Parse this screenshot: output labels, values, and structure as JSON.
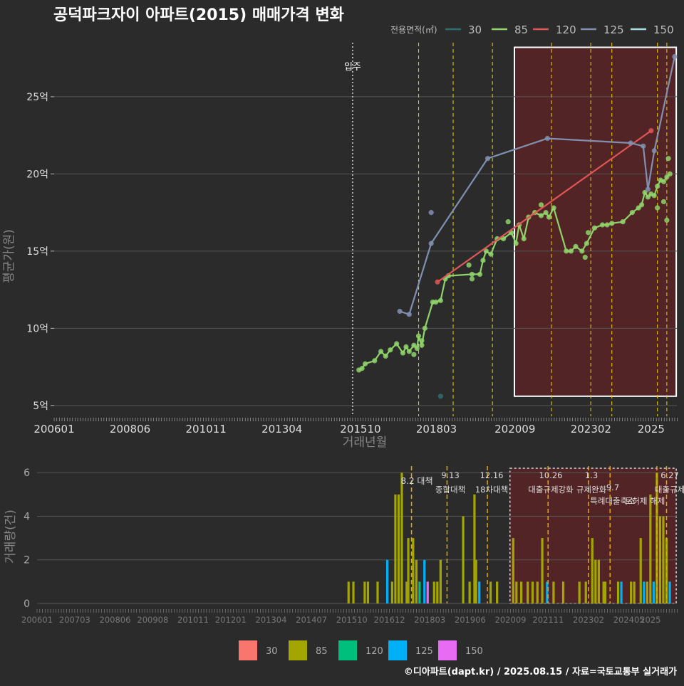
{
  "title": "공덕파크자이 아파트(2015) 매매가격 변화",
  "credit": "©디아파트(dapt.kr) / 2025.08.15 / 자료=국토교통부 실거래가",
  "colors": {
    "bg": "#2b2b2b",
    "grid": "#555555",
    "s30": "#2f6f73",
    "s85": "#8fd36a",
    "s120": "#e05555",
    "s125": "#8090b0",
    "s150": "#a8e0e8",
    "b30": "#f8766d",
    "b85": "#a3a500",
    "b120": "#00bf7d",
    "b125": "#00b0f6",
    "b150": "#e76bf3",
    "policy_dashed": "#e6c200",
    "highlight_fill": "#5a2326"
  },
  "chart_data": [
    {
      "type": "line",
      "name": "price",
      "xlabel": "거래년월",
      "ylabel": "평균가(원)",
      "xticks": [
        "200601",
        "200806",
        "201011",
        "201304",
        "201510",
        "201803",
        "202009",
        "202302",
        "2025"
      ],
      "yticks": [
        "5억",
        "10억",
        "15억",
        "20억",
        "25억"
      ],
      "ylim": [
        4.3,
        28.5
      ],
      "legend_title": "전용면적(㎡)",
      "legend_position": "top-right",
      "legend": [
        "30",
        "85",
        "120",
        "125",
        "150"
      ],
      "marker_label": "입주",
      "marker_x": 2015.5,
      "policy_lines": [
        2017.6,
        2018.7,
        2019.95,
        2021.83,
        2023.08,
        2023.75,
        2025.2,
        2025.5
      ],
      "highlight": {
        "x0": 2020.65,
        "x1": 2025.8,
        "y0": 5.6,
        "y1": 28.2
      },
      "series": [
        {
          "name": "85",
          "color_key": "s85",
          "x": [
            2015.7,
            2015.8,
            2015.9,
            2016.2,
            2016.4,
            2016.55,
            2016.7,
            2016.9,
            2017.1,
            2017.2,
            2017.3,
            2017.45,
            2017.55,
            2017.6,
            2017.7,
            2017.8,
            2018.05,
            2018.15,
            2018.3,
            2018.45,
            2018.55,
            2019.3,
            2019.55,
            2019.65,
            2019.75,
            2019.9,
            2020.1,
            2020.3,
            2020.55,
            2020.7,
            2020.8,
            2020.95,
            2021.1,
            2021.3,
            2021.5,
            2021.65,
            2021.75,
            2021.9,
            2022.3,
            2022.45,
            2022.6,
            2022.8,
            2022.95,
            2023.2,
            2023.45,
            2023.6,
            2023.75,
            2024.1,
            2024.4,
            2024.6,
            2024.7,
            2024.8,
            2024.9,
            2025.0,
            2025.1,
            2025.2,
            2025.3,
            2025.4,
            2025.5,
            2025.6
          ],
          "values": [
            7.3,
            7.4,
            7.7,
            7.9,
            8.5,
            8.2,
            8.6,
            9.0,
            8.4,
            8.8,
            8.5,
            8.9,
            8.7,
            9.5,
            8.9,
            10.0,
            11.7,
            11.7,
            11.8,
            13.2,
            13.4,
            13.5,
            13.5,
            14.4,
            15.0,
            14.8,
            15.8,
            15.8,
            16.2,
            15.5,
            16.7,
            15.8,
            17.2,
            17.5,
            17.3,
            17.5,
            17.2,
            17.8,
            15.0,
            15.0,
            15.3,
            15.0,
            15.5,
            16.5,
            16.7,
            16.7,
            16.8,
            16.9,
            17.5,
            17.8,
            18.0,
            18.8,
            18.5,
            18.7,
            18.6,
            19.2,
            19.6,
            19.5,
            19.8,
            20.0
          ]
        },
        {
          "name": "120",
          "color_key": "s120",
          "x": [
            2018.2,
            2025.0
          ],
          "values": [
            13.0,
            22.8
          ]
        },
        {
          "name": "125",
          "color_key": "s125",
          "x": [
            2017.0,
            2017.3,
            2018.0,
            2019.8,
            2021.7,
            2024.35,
            2024.75,
            2024.9,
            2025.1,
            2025.75
          ],
          "values": [
            11.1,
            10.9,
            15.5,
            21.0,
            22.3,
            22.0,
            21.8,
            19.0,
            21.5,
            27.6
          ]
        },
        {
          "name": "30",
          "color_key": "s30",
          "x": [
            2018.3
          ],
          "values": [
            5.6
          ]
        }
      ],
      "extra_points_85": [
        [
          2018.0,
          17.5
        ],
        [
          2017.45,
          8.3
        ],
        [
          2017.7,
          9.2
        ],
        [
          2019.2,
          14.1
        ],
        [
          2019.3,
          13.2
        ],
        [
          2020.45,
          16.9
        ],
        [
          2021.5,
          18.0
        ],
        [
          2023.0,
          16.2
        ],
        [
          2022.9,
          14.6
        ],
        [
          2025.2,
          17.8
        ],
        [
          2025.4,
          18.2
        ],
        [
          2025.5,
          17.0
        ],
        [
          2025.55,
          21.0
        ]
      ]
    },
    {
      "type": "bar",
      "name": "volume",
      "ylabel": "거래량(건)",
      "xticks": [
        "200601",
        "200703",
        "200806",
        "200908",
        "201011",
        "201201",
        "201304",
        "201407",
        "201510",
        "201612",
        "201803",
        "201906",
        "202009",
        "202111",
        "202302",
        "202405",
        "2025"
      ],
      "yticks": [
        "0",
        "2",
        "4",
        "6"
      ],
      "ylim": [
        0,
        6.3
      ],
      "legend": [
        "30",
        "85",
        "120",
        "125",
        "150"
      ],
      "policy_lines": [
        2017.6,
        2018.7,
        2019.95,
        2021.83,
        2023.08,
        2023.75,
        2025.2,
        2025.5
      ],
      "policy_labels": [
        {
          "date": "8.2",
          "text": "대책",
          "row": 0
        },
        {
          "date": "9.13",
          "text": "종합대책",
          "row": 0
        },
        {
          "date": "12.16",
          "text": "18차대책",
          "row": 0
        },
        {
          "date": "10.26",
          "text": "대출규제강화",
          "row": 1
        },
        {
          "date": "1.3",
          "text": "규제완화",
          "row": 1
        },
        {
          "date": "9.7",
          "text": "특례대출축소",
          "row": 2
        },
        {
          "date": "",
          "text": "토허제 해제",
          "row": 2
        },
        {
          "date": "6.27",
          "text": "대출규제",
          "row": 1
        }
      ],
      "highlight": {
        "x0": 2020.65,
        "x1": 2025.8
      },
      "bars": [
        {
          "x": 2015.65,
          "v": 1,
          "k": "b85"
        },
        {
          "x": 2015.8,
          "v": 1,
          "k": "b85"
        },
        {
          "x": 2016.15,
          "v": 1,
          "k": "b85"
        },
        {
          "x": 2016.25,
          "v": 1,
          "k": "b85"
        },
        {
          "x": 2016.55,
          "v": 1,
          "k": "b85"
        },
        {
          "x": 2016.85,
          "v": 2,
          "k": "b125"
        },
        {
          "x": 2017.0,
          "v": 1,
          "k": "b85"
        },
        {
          "x": 2017.1,
          "v": 5,
          "k": "b85"
        },
        {
          "x": 2017.2,
          "v": 5,
          "k": "b85"
        },
        {
          "x": 2017.3,
          "v": 6,
          "k": "b85"
        },
        {
          "x": 2017.45,
          "v": 1,
          "k": "b85"
        },
        {
          "x": 2017.5,
          "v": 3,
          "k": "b85"
        },
        {
          "x": 2017.65,
          "v": 3,
          "k": "b85"
        },
        {
          "x": 2017.75,
          "v": 2,
          "k": "b85"
        },
        {
          "x": 2017.85,
          "v": 1,
          "k": "b120"
        },
        {
          "x": 2018.0,
          "v": 2,
          "k": "b125"
        },
        {
          "x": 2018.1,
          "v": 1,
          "k": "b150"
        },
        {
          "x": 2018.3,
          "v": 1,
          "k": "b85"
        },
        {
          "x": 2018.4,
          "v": 1,
          "k": "b85"
        },
        {
          "x": 2018.5,
          "v": 2,
          "k": "b85"
        },
        {
          "x": 2019.2,
          "v": 4,
          "k": "b85"
        },
        {
          "x": 2019.4,
          "v": 1,
          "k": "b85"
        },
        {
          "x": 2019.55,
          "v": 5,
          "k": "b85"
        },
        {
          "x": 2019.6,
          "v": 2,
          "k": "b85"
        },
        {
          "x": 2019.7,
          "v": 1,
          "k": "b125"
        },
        {
          "x": 2020.05,
          "v": 1,
          "k": "b85"
        },
        {
          "x": 2020.25,
          "v": 1,
          "k": "b85"
        },
        {
          "x": 2020.75,
          "v": 3,
          "k": "b85"
        },
        {
          "x": 2020.85,
          "v": 1,
          "k": "b85"
        },
        {
          "x": 2021.0,
          "v": 1,
          "k": "b85"
        },
        {
          "x": 2021.2,
          "v": 1,
          "k": "b85"
        },
        {
          "x": 2021.35,
          "v": 1,
          "k": "b85"
        },
        {
          "x": 2021.5,
          "v": 1,
          "k": "b85"
        },
        {
          "x": 2021.65,
          "v": 3,
          "k": "b85"
        },
        {
          "x": 2021.8,
          "v": 1,
          "k": "b125"
        },
        {
          "x": 2022.0,
          "v": 1,
          "k": "b85"
        },
        {
          "x": 2022.3,
          "v": 1,
          "k": "b85"
        },
        {
          "x": 2022.8,
          "v": 1,
          "k": "b85"
        },
        {
          "x": 2023.0,
          "v": 1,
          "k": "b85"
        },
        {
          "x": 2023.2,
          "v": 3,
          "k": "b85"
        },
        {
          "x": 2023.3,
          "v": 2,
          "k": "b85"
        },
        {
          "x": 2023.4,
          "v": 2,
          "k": "b85"
        },
        {
          "x": 2023.55,
          "v": 1,
          "k": "b85"
        },
        {
          "x": 2023.6,
          "v": 1,
          "k": "b85"
        },
        {
          "x": 2024.0,
          "v": 1,
          "k": "b85"
        },
        {
          "x": 2024.1,
          "v": 1,
          "k": "b125"
        },
        {
          "x": 2024.4,
          "v": 1,
          "k": "b85"
        },
        {
          "x": 2024.5,
          "v": 1,
          "k": "b85"
        },
        {
          "x": 2024.7,
          "v": 3,
          "k": "b85"
        },
        {
          "x": 2024.8,
          "v": 1,
          "k": "b125"
        },
        {
          "x": 2024.9,
          "v": 1,
          "k": "b85"
        },
        {
          "x": 2025.0,
          "v": 5,
          "k": "b85"
        },
        {
          "x": 2025.1,
          "v": 1,
          "k": "b125"
        },
        {
          "x": 2025.2,
          "v": 6,
          "k": "b85"
        },
        {
          "x": 2025.3,
          "v": 4,
          "k": "b85"
        },
        {
          "x": 2025.4,
          "v": 4,
          "k": "b85"
        },
        {
          "x": 2025.5,
          "v": 3,
          "k": "b85"
        },
        {
          "x": 2025.6,
          "v": 1,
          "k": "b125"
        }
      ]
    }
  ]
}
